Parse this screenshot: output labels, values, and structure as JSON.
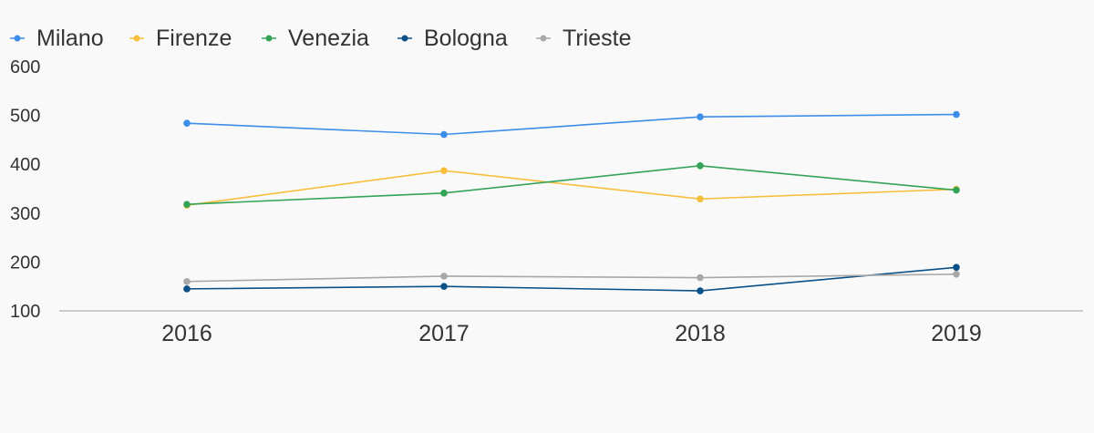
{
  "chart_data": {
    "type": "line",
    "title": "",
    "xlabel": "",
    "ylabel": "",
    "categories": [
      "2016",
      "2017",
      "2018",
      "2019"
    ],
    "ylim": [
      100,
      600
    ],
    "y_ticks": [
      100,
      200,
      300,
      400,
      500,
      600
    ],
    "grid": false,
    "legend_position": "top-left",
    "series": [
      {
        "name": "Milano",
        "color": "#3c8ee8",
        "values": [
          484,
          461,
          497,
          502
        ]
      },
      {
        "name": "Firenze",
        "color": "#f7be3c",
        "values": [
          316,
          387,
          329,
          349
        ]
      },
      {
        "name": "Venezia",
        "color": "#33a457",
        "values": [
          318,
          341,
          397,
          347
        ]
      },
      {
        "name": "Bologna",
        "color": "#0a5188",
        "values": [
          145,
          150,
          141,
          189
        ]
      },
      {
        "name": "Trieste",
        "color": "#a8a8a8",
        "values": [
          160,
          171,
          168,
          175
        ]
      }
    ]
  }
}
